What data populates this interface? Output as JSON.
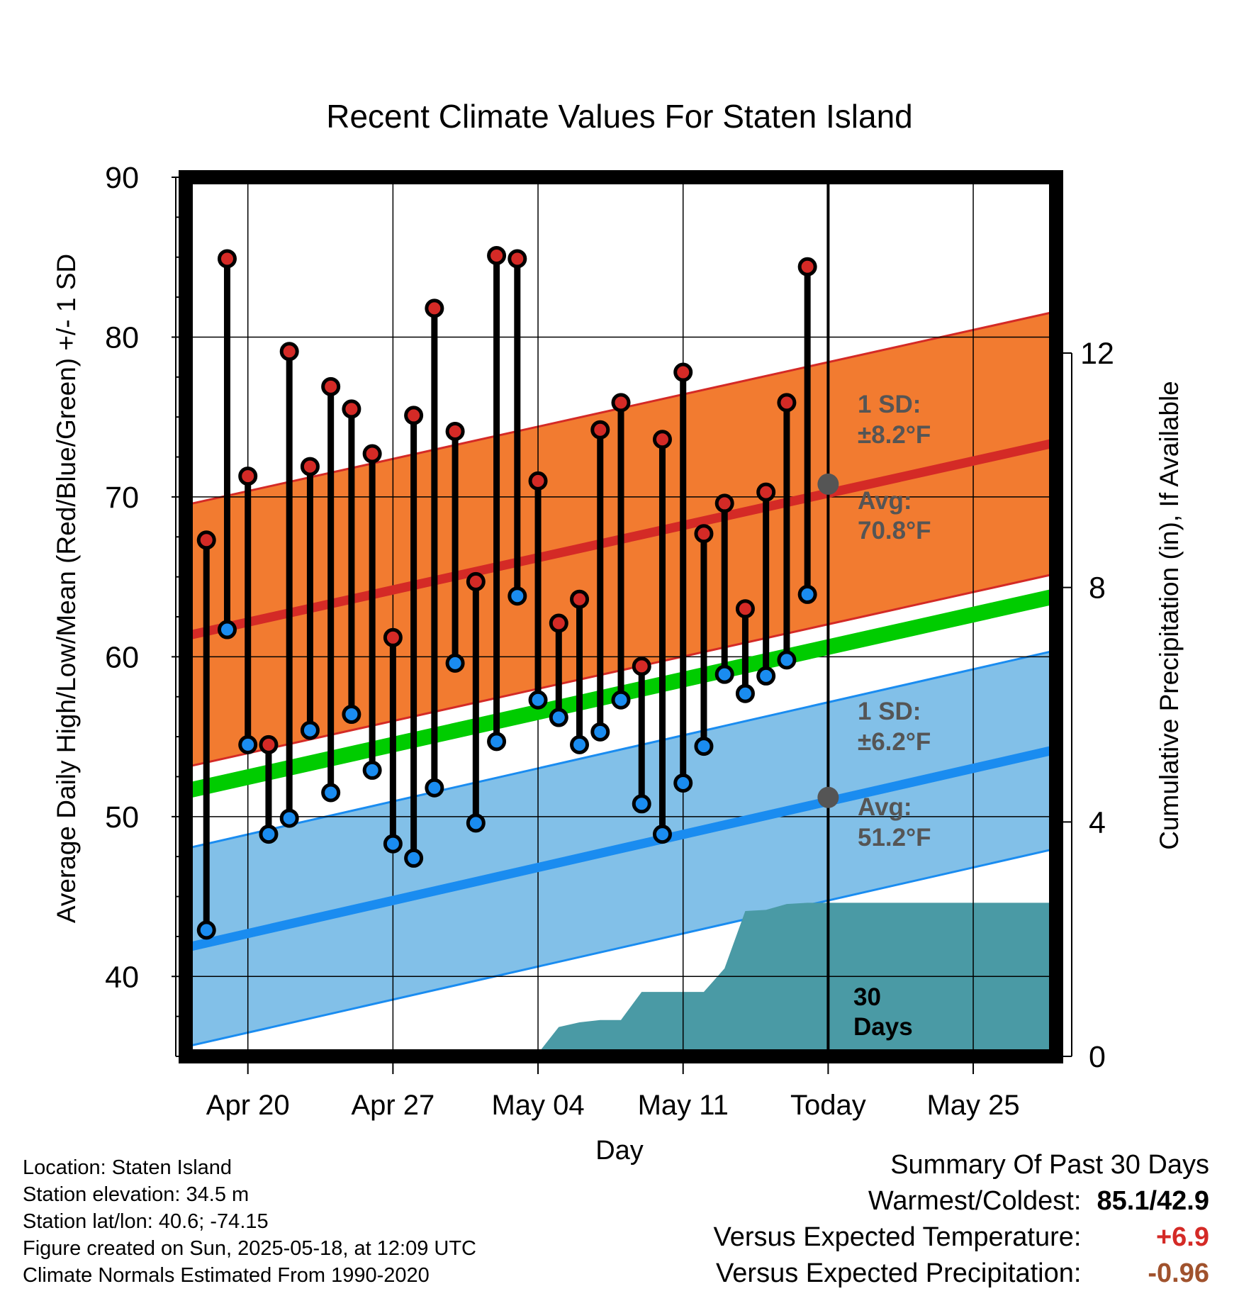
{
  "chart_data": {
    "type": "line",
    "title": "Recent Climate Values For Staten Island",
    "xlabel": "Day",
    "ylabel": "Average Daily High/Low/Mean (Red/Blue/Green) +/- 1 SD",
    "y2label": "Cumulative Precipitation (in), If Available",
    "ylim": [
      35,
      90
    ],
    "y_ticks": [
      40,
      50,
      60,
      70,
      80,
      90
    ],
    "y2lim": [
      0,
      15.0
    ],
    "y2_ticks": [
      0,
      4,
      8,
      12
    ],
    "x_range_days": [
      "2025-04-17",
      "2025-05-29"
    ],
    "x_ticks": [
      {
        "date": "2025-04-20",
        "label": "Apr 20"
      },
      {
        "date": "2025-04-27",
        "label": "Apr 27"
      },
      {
        "date": "2025-05-04",
        "label": "May 04"
      },
      {
        "date": "2025-05-11",
        "label": "May 11"
      },
      {
        "date": "2025-05-18",
        "label": "Today"
      },
      {
        "date": "2025-05-25",
        "label": "May 25"
      }
    ],
    "grid": true,
    "today": "2025-05-18",
    "window_label": [
      "30",
      "Days"
    ],
    "normals": {
      "high": {
        "start": 61.3,
        "end": 73.4,
        "sd": 8.2,
        "color": "#d42a26",
        "band_color": "#f27b30"
      },
      "low": {
        "start": 41.8,
        "end": 54.2,
        "sd": 6.2,
        "color": "#1a8cf0",
        "band_color": "#82c0e8"
      },
      "mean": {
        "start": 51.6,
        "end": 63.8,
        "color": "#00cc00"
      }
    },
    "annotations": {
      "high_sd_label": "1 SD:",
      "high_sd_value": "±8.2°F",
      "high_avg_label": "Avg:",
      "high_avg_value": "70.8°F",
      "high_avg_today": 70.8,
      "low_sd_label": "1 SD:",
      "low_sd_value": "±6.2°F",
      "low_avg_label": "Avg:",
      "low_avg_value": "51.2°F",
      "low_avg_today": 51.2
    },
    "series": [
      {
        "name": "High",
        "color": "#d42a26",
        "dates": [
          "2025-04-18",
          "2025-04-19",
          "2025-04-20",
          "2025-04-21",
          "2025-04-22",
          "2025-04-23",
          "2025-04-24",
          "2025-04-25",
          "2025-04-26",
          "2025-04-27",
          "2025-04-28",
          "2025-04-29",
          "2025-04-30",
          "2025-05-01",
          "2025-05-02",
          "2025-05-03",
          "2025-05-04",
          "2025-05-05",
          "2025-05-06",
          "2025-05-07",
          "2025-05-08",
          "2025-05-09",
          "2025-05-10",
          "2025-05-11",
          "2025-05-12",
          "2025-05-13",
          "2025-05-14",
          "2025-05-15",
          "2025-05-16",
          "2025-05-17"
        ],
        "values": [
          67.3,
          84.9,
          71.3,
          54.5,
          79.1,
          71.9,
          76.9,
          75.5,
          72.7,
          61.2,
          75.1,
          81.8,
          74.1,
          64.7,
          85.1,
          84.9,
          71.0,
          62.1,
          63.6,
          74.2,
          75.9,
          59.4,
          73.6,
          77.8,
          67.7,
          69.6,
          63.0,
          70.3,
          75.9,
          84.4
        ]
      },
      {
        "name": "Low",
        "color": "#1a8cf0",
        "dates": [
          "2025-04-18",
          "2025-04-19",
          "2025-04-20",
          "2025-04-21",
          "2025-04-22",
          "2025-04-23",
          "2025-04-24",
          "2025-04-25",
          "2025-04-26",
          "2025-04-27",
          "2025-04-28",
          "2025-04-29",
          "2025-04-30",
          "2025-05-01",
          "2025-05-02",
          "2025-05-03",
          "2025-05-04",
          "2025-05-05",
          "2025-05-06",
          "2025-05-07",
          "2025-05-08",
          "2025-05-09",
          "2025-05-10",
          "2025-05-11",
          "2025-05-12",
          "2025-05-13",
          "2025-05-14",
          "2025-05-15",
          "2025-05-16",
          "2025-05-17"
        ],
        "values": [
          42.9,
          61.7,
          54.5,
          48.9,
          49.9,
          55.4,
          51.5,
          56.4,
          52.9,
          48.3,
          47.4,
          51.8,
          59.6,
          49.6,
          54.7,
          63.8,
          57.3,
          56.2,
          54.5,
          55.3,
          57.3,
          50.8,
          48.9,
          52.1,
          54.4,
          58.9,
          57.7,
          58.8,
          59.8,
          63.9
        ]
      },
      {
        "name": "Cumulative Precipitation",
        "color": "#4a9aa5",
        "dates": [
          "2025-04-18",
          "2025-05-03",
          "2025-05-04",
          "2025-05-05",
          "2025-05-06",
          "2025-05-07",
          "2025-05-08",
          "2025-05-09",
          "2025-05-10",
          "2025-05-11",
          "2025-05-12",
          "2025-05-13",
          "2025-05-14",
          "2025-05-15",
          "2025-05-16",
          "2025-05-17",
          "2025-05-18",
          "2025-05-29"
        ],
        "values": [
          0,
          0,
          0.05,
          0.5,
          0.58,
          0.62,
          0.62,
          1.1,
          1.1,
          1.1,
          1.1,
          1.5,
          2.48,
          2.5,
          2.6,
          2.62,
          2.62,
          2.62
        ]
      }
    ]
  },
  "footer": {
    "location": "Location: Staten Island",
    "elevation": "Station elevation: 34.5 m",
    "latlon": "Station lat/lon: 40.6; -74.15",
    "created": "Figure created on Sun, 2025-05-18, at 12:09 UTC",
    "normals": "Climate Normals Estimated From 1990-2020"
  },
  "summary": {
    "title": "Summary Of Past 30 Days",
    "warm_cold_label": "Warmest/Coldest:",
    "warm_cold_value": "85.1/42.9",
    "temp_label": "Versus Expected Temperature:",
    "temp_value": "+6.9",
    "temp_color": "#d42a26",
    "precip_label": "Versus Expected Precipitation:",
    "precip_value": "-0.96",
    "precip_color": "#a0522d"
  }
}
